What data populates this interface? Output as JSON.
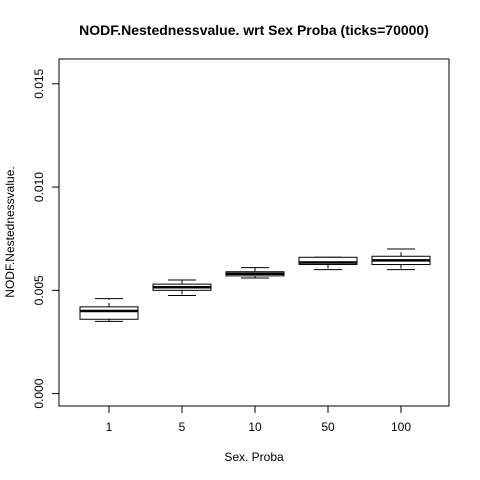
{
  "chart_data": {
    "type": "boxplot",
    "title": "NODF.Nestednessvalue. wrt Sex Proba (ticks=70000)",
    "xlabel": "Sex. Proba",
    "ylabel": "NODF.Nestednessvalue.",
    "ylim": [
      -0.0006,
      0.0162
    ],
    "yticks": [
      0.0,
      0.005,
      0.01,
      0.015
    ],
    "ytick_labels": [
      "0.000",
      "0.005",
      "0.010",
      "0.015"
    ],
    "grid": false,
    "categories": [
      "1",
      "5",
      "10",
      "50",
      "100"
    ],
    "boxes": [
      {
        "category": "1",
        "whisker_low": 0.0035,
        "q1": 0.0036,
        "median": 0.004,
        "q3": 0.0042,
        "whisker_high": 0.0046
      },
      {
        "category": "5",
        "whisker_low": 0.00475,
        "q1": 0.005,
        "median": 0.00515,
        "q3": 0.0053,
        "whisker_high": 0.0055
      },
      {
        "category": "10",
        "whisker_low": 0.0056,
        "q1": 0.0057,
        "median": 0.0058,
        "q3": 0.0059,
        "whisker_high": 0.0061
      },
      {
        "category": "50",
        "whisker_low": 0.006,
        "q1": 0.00625,
        "median": 0.00635,
        "q3": 0.0066,
        "whisker_high": 0.0066
      },
      {
        "category": "100",
        "whisker_low": 0.006,
        "q1": 0.00625,
        "median": 0.00645,
        "q3": 0.00665,
        "whisker_high": 0.007
      }
    ]
  }
}
